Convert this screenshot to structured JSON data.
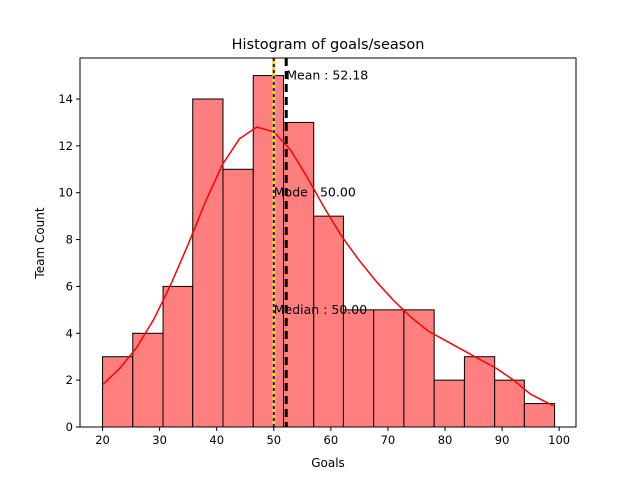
{
  "chart_data": {
    "type": "bar",
    "title": "Histogram of goals/season",
    "xlabel": "Goals",
    "ylabel": "Team Count",
    "xlim": [
      16.05,
      102.95
    ],
    "ylim": [
      0,
      15.75
    ],
    "xticks": [
      20,
      30,
      40,
      50,
      60,
      70,
      80,
      90,
      100
    ],
    "yticks": [
      0,
      2,
      4,
      6,
      8,
      10,
      12,
      14
    ],
    "bins": [
      {
        "start": 20.0,
        "end": 25.3,
        "count": 3
      },
      {
        "start": 25.3,
        "end": 30.6,
        "count": 4
      },
      {
        "start": 30.6,
        "end": 35.8,
        "count": 6
      },
      {
        "start": 35.8,
        "end": 41.1,
        "count": 14
      },
      {
        "start": 41.1,
        "end": 46.4,
        "count": 11
      },
      {
        "start": 46.4,
        "end": 51.7,
        "count": 15
      },
      {
        "start": 51.7,
        "end": 57.0,
        "count": 13
      },
      {
        "start": 57.0,
        "end": 62.2,
        "count": 9
      },
      {
        "start": 62.2,
        "end": 67.5,
        "count": 5
      },
      {
        "start": 67.5,
        "end": 72.8,
        "count": 5
      },
      {
        "start": 72.8,
        "end": 78.1,
        "count": 5
      },
      {
        "start": 78.1,
        "end": 83.4,
        "count": 2
      },
      {
        "start": 83.4,
        "end": 88.7,
        "count": 3
      },
      {
        "start": 88.7,
        "end": 93.9,
        "count": 2
      },
      {
        "start": 93.9,
        "end": 99.2,
        "count": 1
      }
    ],
    "kde": {
      "x": [
        20,
        23,
        26,
        29,
        32,
        35,
        38,
        41,
        44,
        47,
        50,
        53,
        56,
        59,
        62,
        65,
        68,
        71,
        74,
        77,
        80,
        83,
        86,
        89,
        92,
        95,
        99
      ],
      "y": [
        1.8,
        2.5,
        3.4,
        4.6,
        6.1,
        7.8,
        9.6,
        11.2,
        12.3,
        12.8,
        12.6,
        11.8,
        10.6,
        9.3,
        8.1,
        7.1,
        6.2,
        5.4,
        4.7,
        4.1,
        3.7,
        3.3,
        2.9,
        2.5,
        2.0,
        1.4,
        0.9
      ]
    },
    "vlines": [
      {
        "label": "Mean : 52.18",
        "value": 52.18,
        "label_y": 15.0
      },
      {
        "label": "Mode : 50.00",
        "value": 50.0,
        "label_y": 10.0
      },
      {
        "label": "Median : 50.00",
        "value": 50.0,
        "label_y": 5.0
      }
    ],
    "colors": {
      "bar_fill": "#ff7f7f",
      "bar_edge": "#000000",
      "kde_line": "#ff0000",
      "mean_line": "#000000",
      "mode_line": "#ffd700",
      "median_line": "#0000ff"
    }
  }
}
